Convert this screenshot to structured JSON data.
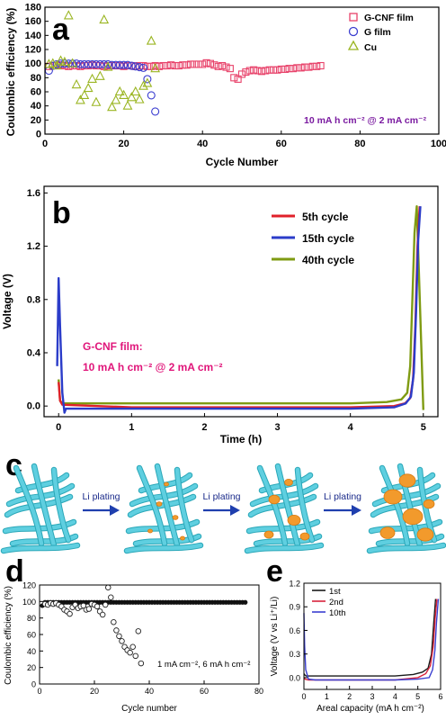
{
  "colors": {
    "gcnf": "#e8426a",
    "gfilm": "#3b3ed0",
    "cu": "#9ab521",
    "c5": "#e0202a",
    "c15": "#2b3cc9",
    "c40": "#7f9b12",
    "purple": "#7a1aa0",
    "pink": "#e0157a",
    "cyan": "#5fcfe0",
    "orange": "#f29a2c",
    "arrow": "#1f3fae"
  },
  "panels": {
    "a": {
      "letter": "a",
      "annotation": "10 mA h cm⁻² @ 2 mA cm⁻²"
    },
    "b": {
      "letter": "b",
      "annotation_line1": "G-CNF film:",
      "annotation_line2": "10 mA h cm⁻² @ 2 mA cm⁻²"
    },
    "c": {
      "letter": "c",
      "arrow_labels": [
        "Li plating",
        "Li plating",
        "Li plating"
      ]
    },
    "d": {
      "letter": "d",
      "annotation": "1 mA cm⁻², 6 mA h cm⁻²"
    },
    "e": {
      "letter": "e"
    }
  },
  "chart_data": [
    {
      "id": "a",
      "type": "scatter",
      "xlabel": "Cycle Number",
      "ylabel": "Coulombic efficiency (%)",
      "xlim": [
        0,
        100
      ],
      "ylim": [
        0,
        180
      ],
      "xticks": [
        0,
        20,
        40,
        60,
        80,
        100
      ],
      "yticks": [
        0,
        20,
        40,
        60,
        80,
        100,
        120,
        140,
        160,
        180
      ],
      "legend_position": "top-right",
      "series": [
        {
          "name": "G-CNF film",
          "marker": "square",
          "x": [
            1,
            2,
            3,
            4,
            5,
            6,
            7,
            8,
            9,
            10,
            11,
            12,
            13,
            14,
            15,
            16,
            17,
            18,
            19,
            20,
            21,
            22,
            23,
            24,
            25,
            26,
            27,
            28,
            29,
            30,
            31,
            32,
            33,
            34,
            35,
            36,
            37,
            38,
            39,
            40,
            41,
            42,
            43,
            44,
            45,
            46,
            47,
            48,
            49,
            50,
            51,
            52,
            53,
            54,
            55,
            56,
            57,
            58,
            59,
            60,
            61,
            62,
            63,
            64,
            65,
            66,
            67,
            68,
            69,
            70
          ],
          "y": [
            96,
            97,
            97,
            98,
            97,
            96,
            97,
            97,
            96,
            97,
            97,
            98,
            97,
            97,
            96,
            97,
            97,
            97,
            97,
            96,
            97,
            97,
            96,
            97,
            97,
            96,
            96,
            97,
            96,
            97,
            97,
            98,
            97,
            97,
            98,
            98,
            99,
            99,
            99,
            99,
            101,
            100,
            98,
            96,
            97,
            95,
            93,
            80,
            78,
            85,
            88,
            90,
            91,
            90,
            89,
            90,
            91,
            91,
            91,
            92,
            92,
            93,
            93,
            94,
            94,
            95,
            95,
            96,
            96,
            97
          ]
        },
        {
          "name": "G film",
          "marker": "circle",
          "x": [
            1,
            2,
            3,
            4,
            5,
            6,
            7,
            8,
            9,
            10,
            11,
            12,
            13,
            14,
            15,
            16,
            17,
            18,
            19,
            20,
            21,
            22,
            23,
            24,
            25,
            26,
            27,
            28
          ],
          "y": [
            90,
            97,
            99,
            100,
            100,
            100,
            100,
            100,
            99,
            99,
            99,
            99,
            99,
            99,
            99,
            99,
            98,
            98,
            98,
            98,
            98,
            97,
            96,
            95,
            94,
            78,
            55,
            32
          ]
        },
        {
          "name": "Cu",
          "marker": "triangle",
          "x": [
            1,
            2,
            3,
            4,
            5,
            6,
            7,
            8,
            9,
            10,
            11,
            12,
            13,
            14,
            15,
            16,
            17,
            18,
            19,
            20,
            21,
            22,
            23,
            24,
            25,
            26,
            27,
            28
          ],
          "y": [
            99,
            100,
            97,
            104,
            102,
            168,
            100,
            70,
            48,
            55,
            65,
            78,
            45,
            82,
            162,
            95,
            38,
            48,
            60,
            55,
            40,
            52,
            60,
            49,
            68,
            72,
            132,
            93
          ]
        }
      ]
    },
    {
      "id": "b",
      "type": "line",
      "xlabel": "Time (h)",
      "ylabel": "Voltage (V)",
      "xlim": [
        -0.2,
        5.2
      ],
      "ylim": [
        -0.08,
        1.65
      ],
      "xticks": [
        0,
        1,
        2,
        3,
        4,
        5
      ],
      "yticks": [
        0.0,
        0.4,
        0.8,
        1.2,
        1.6
      ],
      "legend_position": "top-right",
      "series": [
        {
          "name": "5th cycle",
          "x": [
            0,
            0.02,
            0.05,
            1,
            2,
            3,
            4,
            4.6,
            4.75,
            4.82,
            4.86,
            4.89,
            4.92,
            4.95
          ],
          "y": [
            0.18,
            0.04,
            0.01,
            -0.01,
            -0.01,
            -0.01,
            -0.01,
            0.0,
            0.02,
            0.06,
            0.2,
            0.6,
            1.2,
            1.5
          ]
        },
        {
          "name": "15th cycle",
          "x": [
            -0.02,
            0.0,
            0.02,
            0.05,
            0.08,
            0.1,
            1,
            2,
            3,
            4,
            4.6,
            4.76,
            4.83,
            4.87,
            4.9,
            4.93,
            4.96
          ],
          "y": [
            0.3,
            0.96,
            0.6,
            0.1,
            -0.05,
            -0.02,
            -0.02,
            -0.02,
            -0.02,
            -0.02,
            -0.01,
            0.02,
            0.07,
            0.25,
            0.7,
            1.25,
            1.5
          ]
        },
        {
          "name": "40th cycle",
          "x": [
            0,
            0.02,
            0.05,
            1,
            2,
            3,
            4,
            4.5,
            4.7,
            4.78,
            4.82,
            4.85,
            4.88,
            4.91,
            5.0
          ],
          "y": [
            0.2,
            0.04,
            0.02,
            0.02,
            0.02,
            0.02,
            0.02,
            0.03,
            0.05,
            0.1,
            0.3,
            0.8,
            1.3,
            1.5,
            -0.03
          ]
        }
      ]
    },
    {
      "id": "d",
      "type": "scatter",
      "xlabel": "Cycle number",
      "ylabel": "Coulombic efficiency (%)",
      "xlim": [
        0,
        80
      ],
      "ylim": [
        0,
        120
      ],
      "xticks": [
        0,
        20,
        40,
        60,
        80
      ],
      "yticks": [
        0,
        20,
        40,
        60,
        80,
        100,
        120
      ],
      "series": [
        {
          "marker": "filled-circle",
          "x_start": 1,
          "x_end": 75,
          "y_first": 95,
          "y_rest": 99
        },
        {
          "marker": "open-circle",
          "x": [
            2,
            3,
            4,
            5,
            6,
            7,
            8,
            9,
            10,
            11,
            12,
            13,
            14,
            15,
            16,
            17,
            18,
            19,
            20,
            21,
            22,
            23,
            24,
            25,
            26,
            27,
            28,
            29,
            30,
            31,
            32,
            33,
            34,
            35,
            36,
            37
          ],
          "y": [
            97,
            96,
            98,
            97,
            98,
            96,
            94,
            90,
            88,
            85,
            93,
            96,
            92,
            94,
            95,
            90,
            91,
            97,
            96,
            94,
            88,
            84,
            96,
            117,
            105,
            75,
            65,
            58,
            52,
            45,
            41,
            38,
            45,
            34,
            64,
            25
          ]
        }
      ]
    },
    {
      "id": "e",
      "type": "line",
      "xlabel": "Areal capacity (mA h cm⁻²)",
      "ylabel": "Voltage (V vs Li⁺/Li)",
      "xlim": [
        0,
        6
      ],
      "ylim": [
        -0.15,
        1.2
      ],
      "xticks": [
        0,
        1,
        2,
        3,
        4,
        5,
        6
      ],
      "yticks": [
        0.0,
        0.3,
        0.6,
        0.9,
        1.2
      ],
      "legend_position": "top-left",
      "series": [
        {
          "name": "1st",
          "x": [
            0,
            0.05,
            0.1,
            0.2,
            0.5,
            1,
            2,
            3,
            4,
            4.8,
            5.2,
            5.45,
            5.6,
            5.7,
            5.78
          ],
          "y": [
            0.05,
            0.03,
            0.02,
            0.02,
            0.02,
            0.02,
            0.02,
            0.02,
            0.02,
            0.04,
            0.07,
            0.12,
            0.3,
            0.7,
            1.0
          ]
        },
        {
          "name": "2nd",
          "x": [
            0,
            0.05,
            0.2,
            0.5,
            1,
            2,
            3,
            4,
            5,
            5.35,
            5.55,
            5.68,
            5.76,
            5.84
          ],
          "y": [
            0.0,
            -0.02,
            -0.03,
            -0.03,
            -0.03,
            -0.03,
            -0.03,
            -0.03,
            0.0,
            0.05,
            0.15,
            0.4,
            0.75,
            1.0
          ]
        },
        {
          "name": "10th",
          "x": [
            0,
            0.03,
            0.08,
            0.2,
            0.5,
            0.7,
            1,
            2,
            3,
            4,
            5,
            5.5,
            5.65,
            5.75,
            5.82,
            5.9
          ],
          "y": [
            0.82,
            0.4,
            0.1,
            -0.02,
            -0.03,
            -0.03,
            -0.03,
            -0.03,
            -0.03,
            -0.03,
            -0.02,
            0.0,
            0.1,
            0.35,
            0.7,
            1.0
          ]
        }
      ]
    }
  ]
}
